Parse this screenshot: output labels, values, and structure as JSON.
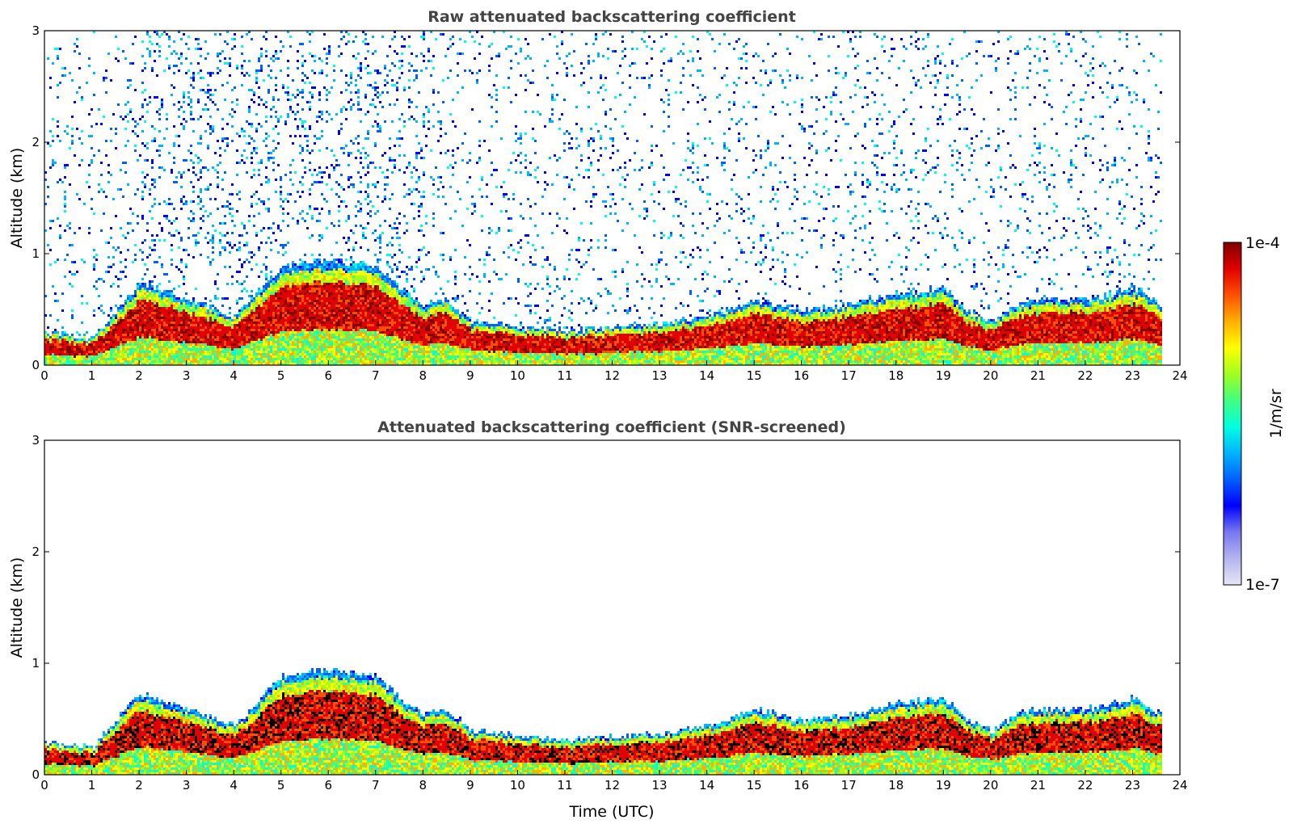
{
  "chart_data": [
    {
      "type": "heatmap",
      "title": "Raw attenuated backscattering coefficient",
      "xlabel": "",
      "ylabel": "Altitude (km)",
      "xlim": [
        0,
        24
      ],
      "ylim": [
        0,
        3
      ],
      "x_ticks": [
        0,
        1,
        2,
        3,
        4,
        5,
        6,
        7,
        8,
        9,
        10,
        11,
        12,
        13,
        14,
        15,
        16,
        17,
        18,
        19,
        20,
        21,
        22,
        23,
        24
      ],
      "y_ticks": [
        0,
        1,
        2,
        3
      ],
      "data_end_time": 23.6,
      "boundary_layer_top_km": [
        [
          0,
          0.3
        ],
        [
          1,
          0.25
        ],
        [
          2,
          0.75
        ],
        [
          3,
          0.6
        ],
        [
          4,
          0.45
        ],
        [
          5,
          0.9
        ],
        [
          6,
          0.95
        ],
        [
          7,
          0.9
        ],
        [
          7.5,
          0.7
        ],
        [
          8,
          0.55
        ],
        [
          8.5,
          0.6
        ],
        [
          9,
          0.4
        ],
        [
          9.5,
          0.4
        ],
        [
          10,
          0.35
        ],
        [
          11,
          0.32
        ],
        [
          12,
          0.35
        ],
        [
          13,
          0.38
        ],
        [
          14,
          0.45
        ],
        [
          15,
          0.6
        ],
        [
          16,
          0.5
        ],
        [
          17,
          0.55
        ],
        [
          18,
          0.65
        ],
        [
          19,
          0.7
        ],
        [
          19.5,
          0.5
        ],
        [
          20,
          0.4
        ],
        [
          20.5,
          0.55
        ],
        [
          21,
          0.6
        ],
        [
          22,
          0.6
        ],
        [
          23,
          0.7
        ],
        [
          23.6,
          0.55
        ]
      ],
      "noise_above_bl": true,
      "screened": false
    },
    {
      "type": "heatmap",
      "title": "Attenuated backscattering coefficient (SNR-screened)",
      "xlabel": "Time (UTC)",
      "ylabel": "Altitude (km)",
      "xlim": [
        0,
        24
      ],
      "ylim": [
        0,
        3
      ],
      "x_ticks": [
        0,
        1,
        2,
        3,
        4,
        5,
        6,
        7,
        8,
        9,
        10,
        11,
        12,
        13,
        14,
        15,
        16,
        17,
        18,
        19,
        20,
        21,
        22,
        23,
        24
      ],
      "y_ticks": [
        0,
        1,
        2,
        3
      ],
      "data_end_time": 23.6,
      "noise_above_bl": false,
      "screened": true,
      "saturated_color": "#000000"
    }
  ],
  "colorbar": {
    "label": "1/m/sr",
    "max_label": "1e-4",
    "min_label": "1e-7",
    "colormap": [
      "#e6e6f5",
      "#b4b4f0",
      "#7878f0",
      "#0000ff",
      "#0060ff",
      "#00b4ff",
      "#00ffe0",
      "#40ff80",
      "#a0ff20",
      "#ffff00",
      "#ffb000",
      "#ff5000",
      "#e00000",
      "#800000"
    ]
  }
}
